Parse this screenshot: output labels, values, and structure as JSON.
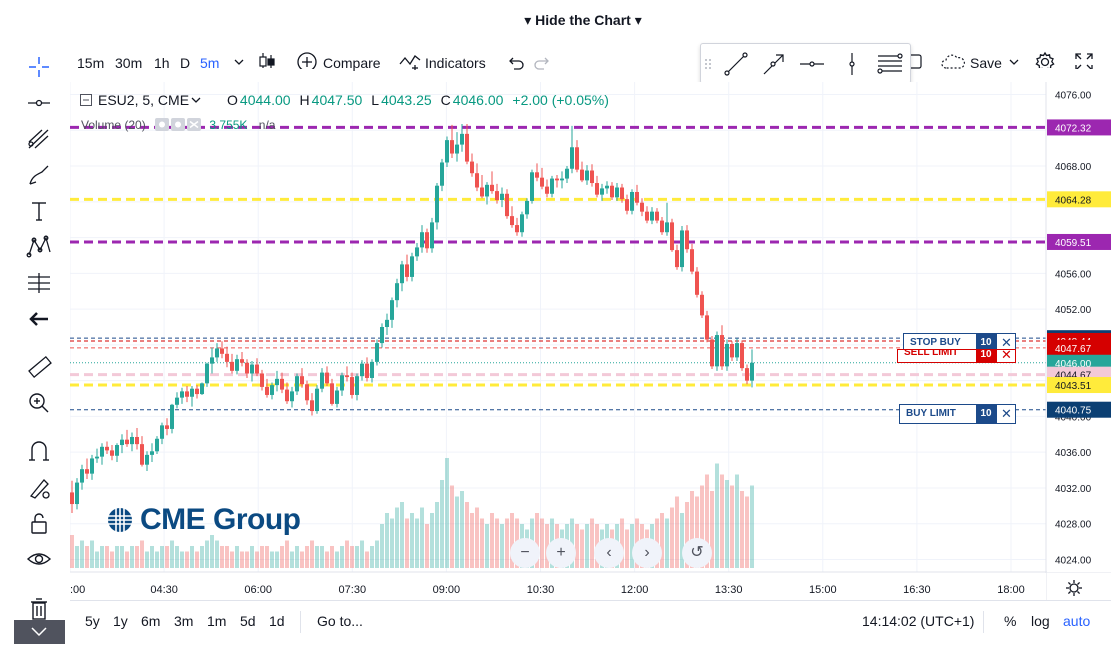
{
  "header": {
    "title": "Hide the Chart"
  },
  "toolbar": {
    "intervals": [
      "15m",
      "30m",
      "1h",
      "D",
      "5m"
    ],
    "active_interval": "5m",
    "compare_label": "Compare",
    "indicators_label": "Indicators",
    "save_label": "Save"
  },
  "legend": {
    "symbol": "ESU2, 5, CME",
    "open_label": "O",
    "open": "4044.00",
    "high_label": "H",
    "high": "4047.50",
    "low_label": "L",
    "low": "4043.25",
    "close_label": "C",
    "close": "4046.00",
    "change": "+2.00 (+0.05%)",
    "volume_label": "Volume (20)",
    "volume_value": "3.755K",
    "volume_ma": "n/a"
  },
  "orders": {
    "stop_buy_label": "STOP BUY",
    "stop_buy_qty": "10",
    "sell_limit_label": "SELL LIMIT",
    "sell_limit_qty": "10",
    "buy_limit_label": "BUY LIMIT",
    "buy_limit_qty": "10"
  },
  "logo": {
    "text": "CME Group"
  },
  "bottombar": {
    "ranges": [
      "5y",
      "1y",
      "6m",
      "3m",
      "1m",
      "5d",
      "1d"
    ],
    "goto_label": "Go to...",
    "time": "14:14:02 (UTC+1)",
    "percent": "%",
    "log": "log",
    "auto": "auto"
  },
  "colors": {
    "up": "#26a69a",
    "down": "#ef5350",
    "purple": "#9c27b0",
    "yellow": "#ffeb3b",
    "accent": "#2962ff",
    "order_blue": "#1c4a8a",
    "sell_red": "#d50000"
  },
  "chart_data": {
    "type": "candlestick",
    "x_ticks": [
      ":00",
      "04:30",
      "06:00",
      "07:30",
      "09:00",
      "10:30",
      "12:00",
      "13:30",
      "15:00",
      "16:30",
      "18:00"
    ],
    "y_ticks": [
      "4076.00",
      "4072.00",
      "4068.00",
      "4064.00",
      "4060.00",
      "4056.00",
      "4052.00",
      "4048.00",
      "4044.00",
      "4040.00",
      "4036.00",
      "4032.00",
      "4028.00",
      "4024.00"
    ],
    "ylim": [
      4022.6,
      4077.4
    ],
    "ohlc": [
      [
        4031.5,
        4032.8,
        4029.2,
        4030.2
      ],
      [
        4030.2,
        4033.1,
        4029.6,
        4032.6
      ],
      [
        4032.6,
        4034.6,
        4031.8,
        4034.1
      ],
      [
        4034.1,
        4035.3,
        4033.0,
        4033.6
      ],
      [
        4033.6,
        4035.7,
        4032.9,
        4035.3
      ],
      [
        4035.3,
        4036.4,
        4034.8,
        4035.5
      ],
      [
        4035.5,
        4037.0,
        4034.6,
        4036.6
      ],
      [
        4036.6,
        4037.2,
        4035.8,
        4036.2
      ],
      [
        4036.2,
        4036.8,
        4035.1,
        4035.6
      ],
      [
        4035.6,
        4037.0,
        4034.9,
        4036.8
      ],
      [
        4036.8,
        4038.0,
        4035.9,
        4037.4
      ],
      [
        4037.4,
        4038.5,
        4036.6,
        4036.9
      ],
      [
        4036.9,
        4038.2,
        4036.1,
        4037.7
      ],
      [
        4037.7,
        4038.7,
        4036.3,
        4036.9
      ],
      [
        4036.9,
        4037.8,
        4034.4,
        4034.6
      ],
      [
        4034.6,
        4036.1,
        4033.9,
        4035.7
      ],
      [
        4035.7,
        4037.0,
        4034.9,
        4036.1
      ],
      [
        4036.1,
        4037.8,
        4035.8,
        4037.5
      ],
      [
        4037.5,
        4039.3,
        4036.9,
        4039.0
      ],
      [
        4039.0,
        4039.8,
        4037.9,
        4038.6
      ],
      [
        4038.6,
        4041.4,
        4038.1,
        4041.3
      ],
      [
        4041.3,
        4042.7,
        4040.9,
        4042.1
      ],
      [
        4042.1,
        4043.2,
        4041.4,
        4042.8
      ],
      [
        4042.8,
        4043.4,
        4041.6,
        4042.2
      ],
      [
        4042.2,
        4043.4,
        4041.1,
        4043.1
      ],
      [
        4043.1,
        4043.5,
        4042.0,
        4042.5
      ],
      [
        4042.5,
        4043.8,
        4042.4,
        4043.7
      ],
      [
        4043.7,
        4046.0,
        4043.3,
        4045.9
      ],
      [
        4045.9,
        4047.7,
        4044.8,
        4046.6
      ],
      [
        4046.6,
        4048.2,
        4046.1,
        4047.6
      ],
      [
        4047.6,
        4048.4,
        4046.5,
        4047.0
      ],
      [
        4047.0,
        4047.8,
        4045.5,
        4046.1
      ],
      [
        4046.1,
        4047.0,
        4044.8,
        4045.1
      ],
      [
        4045.1,
        4046.9,
        4044.7,
        4046.4
      ],
      [
        4046.4,
        4047.2,
        4045.6,
        4046.0
      ],
      [
        4046.0,
        4046.4,
        4044.3,
        4044.8
      ],
      [
        4044.8,
        4046.2,
        4043.9,
        4045.8
      ],
      [
        4045.8,
        4046.5,
        4044.5,
        4044.8
      ],
      [
        4044.8,
        4045.2,
        4042.9,
        4043.3
      ],
      [
        4043.3,
        4044.2,
        4042.1,
        4042.4
      ],
      [
        4042.4,
        4043.8,
        4041.9,
        4043.5
      ],
      [
        4043.5,
        4045.1,
        4042.8,
        4044.2
      ],
      [
        4044.2,
        4044.9,
        4042.6,
        4043.0
      ],
      [
        4043.0,
        4043.8,
        4041.4,
        4041.7
      ],
      [
        4041.7,
        4043.3,
        4041.0,
        4042.8
      ],
      [
        4042.8,
        4044.8,
        4042.4,
        4044.5
      ],
      [
        4044.5,
        4045.4,
        4043.2,
        4043.6
      ],
      [
        4043.6,
        4044.0,
        4041.3,
        4041.8
      ],
      [
        4041.8,
        4042.6,
        4040.1,
        4040.6
      ],
      [
        4040.6,
        4043.5,
        4040.3,
        4043.1
      ],
      [
        4043.1,
        4045.4,
        4042.7,
        4044.9
      ],
      [
        4044.9,
        4045.6,
        4043.4,
        4043.7
      ],
      [
        4043.7,
        4044.2,
        4041.2,
        4041.4
      ],
      [
        4041.4,
        4043.3,
        4041.0,
        4042.9
      ],
      [
        4042.9,
        4044.9,
        4042.3,
        4044.6
      ],
      [
        4044.6,
        4045.6,
        4043.9,
        4044.4
      ],
      [
        4044.4,
        4044.9,
        4042.0,
        4042.4
      ],
      [
        4042.4,
        4044.8,
        4041.8,
        4044.5
      ],
      [
        4044.5,
        4046.3,
        4044.0,
        4045.9
      ],
      [
        4045.9,
        4046.6,
        4043.9,
        4044.3
      ],
      [
        4044.3,
        4046.4,
        4043.8,
        4046.1
      ],
      [
        4046.1,
        4048.6,
        4045.7,
        4048.2
      ],
      [
        4048.2,
        4050.4,
        4047.7,
        4050.0
      ],
      [
        4050.0,
        4051.5,
        4049.1,
        4050.8
      ],
      [
        4050.8,
        4053.3,
        4049.9,
        4053.0
      ],
      [
        4053.0,
        4055.4,
        4052.2,
        4054.9
      ],
      [
        4054.9,
        4057.4,
        4054.0,
        4057.0
      ],
      [
        4057.0,
        4058.1,
        4055.1,
        4055.6
      ],
      [
        4055.6,
        4058.3,
        4055.1,
        4057.9
      ],
      [
        4057.9,
        4059.4,
        4057.4,
        4058.9
      ],
      [
        4058.9,
        4061.4,
        4058.3,
        4060.6
      ],
      [
        4060.6,
        4061.0,
        4058.3,
        4058.8
      ],
      [
        4058.8,
        4062.2,
        4058.3,
        4061.7
      ],
      [
        4061.7,
        4066.1,
        4060.9,
        4065.8
      ],
      [
        4065.8,
        4068.8,
        4065.2,
        4068.4
      ],
      [
        4068.4,
        4071.3,
        4067.9,
        4070.9
      ],
      [
        4070.9,
        4072.6,
        4068.9,
        4069.4
      ],
      [
        4069.4,
        4071.8,
        4068.5,
        4070.4
      ],
      [
        4070.4,
        4072.7,
        4069.6,
        4071.6
      ],
      [
        4071.6,
        4072.7,
        4068.2,
        4068.5
      ],
      [
        4068.5,
        4069.4,
        4066.8,
        4067.2
      ],
      [
        4067.2,
        4068.3,
        4065.2,
        4065.6
      ],
      [
        4065.6,
        4067.0,
        4064.4,
        4064.6
      ],
      [
        4064.6,
        4066.2,
        4063.7,
        4065.9
      ],
      [
        4065.9,
        4067.4,
        4064.9,
        4065.2
      ],
      [
        4065.2,
        4066.0,
        4063.8,
        4064.2
      ],
      [
        4064.2,
        4065.6,
        4063.4,
        4064.9
      ],
      [
        4064.9,
        4065.4,
        4062.1,
        4062.4
      ],
      [
        4062.4,
        4063.5,
        4061.1,
        4061.4
      ],
      [
        4061.4,
        4062.2,
        4060.2,
        4060.6
      ],
      [
        4060.6,
        4062.9,
        4060.1,
        4062.6
      ],
      [
        4062.6,
        4064.4,
        4062.1,
        4064.1
      ],
      [
        4064.1,
        4067.6,
        4063.8,
        4067.3
      ],
      [
        4067.3,
        4068.3,
        4066.3,
        4066.7
      ],
      [
        4066.7,
        4067.8,
        4065.4,
        4065.7
      ],
      [
        4065.7,
        4066.5,
        4064.5,
        4064.9
      ],
      [
        4064.9,
        4066.9,
        4064.5,
        4066.6
      ],
      [
        4066.6,
        4067.0,
        4065.6,
        4066.4
      ],
      [
        4066.4,
        4067.4,
        4065.5,
        4066.6
      ],
      [
        4066.6,
        4068.0,
        4066.1,
        4067.7
      ],
      [
        4067.7,
        4072.5,
        4067.2,
        4070.1
      ],
      [
        4070.1,
        4070.9,
        4067.3,
        4067.6
      ],
      [
        4067.6,
        4068.5,
        4066.2,
        4066.4
      ],
      [
        4066.4,
        4068.1,
        4065.9,
        4067.5
      ],
      [
        4067.5,
        4068.2,
        4065.7,
        4066.1
      ],
      [
        4066.1,
        4066.9,
        4064.5,
        4064.8
      ],
      [
        4064.8,
        4066.0,
        4064.1,
        4065.5
      ],
      [
        4065.5,
        4066.3,
        4064.9,
        4065.8
      ],
      [
        4065.8,
        4066.2,
        4064.2,
        4064.5
      ],
      [
        4064.5,
        4066.1,
        4064.1,
        4065.6
      ],
      [
        4065.6,
        4066.0,
        4063.9,
        4064.3
      ],
      [
        4064.3,
        4064.8,
        4062.6,
        4063.0
      ],
      [
        4063.0,
        4065.4,
        4062.6,
        4065.1
      ],
      [
        4065.1,
        4065.9,
        4063.6,
        4063.9
      ],
      [
        4063.9,
        4064.4,
        4062.4,
        4062.9
      ],
      [
        4062.9,
        4063.5,
        4061.6,
        4061.9
      ],
      [
        4061.9,
        4063.4,
        4061.5,
        4062.9
      ],
      [
        4062.9,
        4063.3,
        4061.6,
        4061.9
      ],
      [
        4061.9,
        4062.3,
        4060.3,
        4060.6
      ],
      [
        4060.6,
        4063.9,
        4060.2,
        4061.7
      ],
      [
        4061.7,
        4062.1,
        4058.4,
        4058.6
      ],
      [
        4058.6,
        4059.2,
        4056.4,
        4056.7
      ],
      [
        4056.7,
        4061.3,
        4056.2,
        4060.8
      ],
      [
        4060.8,
        4061.4,
        4058.3,
        4058.7
      ],
      [
        4058.7,
        4059.3,
        4055.9,
        4056.2
      ],
      [
        4056.2,
        4056.7,
        4053.3,
        4053.6
      ],
      [
        4053.6,
        4054.0,
        4051.0,
        4051.3
      ],
      [
        4051.3,
        4051.8,
        4048.3,
        4048.6
      ],
      [
        4048.6,
        4049.0,
        4045.3,
        4045.6
      ],
      [
        4045.6,
        4049.5,
        4045.1,
        4049.1
      ],
      [
        4049.1,
        4050.2,
        4045.2,
        4045.6
      ],
      [
        4045.6,
        4048.6,
        4045.1,
        4048.1
      ],
      [
        4048.1,
        4048.4,
        4046.2,
        4046.6
      ],
      [
        4046.6,
        4048.7,
        4046.2,
        4048.2
      ],
      [
        4048.2,
        4048.5,
        4045.1,
        4045.4
      ],
      [
        4045.4,
        4045.8,
        4043.6,
        4044.0
      ],
      [
        4044.0,
        4047.5,
        4043.25,
        4046.0
      ]
    ],
    "volume": [
      6,
      4,
      5,
      4,
      5,
      3,
      4,
      4,
      3,
      4,
      4,
      3,
      4,
      4,
      5,
      3,
      4,
      3,
      4,
      4,
      5,
      4,
      3,
      3,
      4,
      3,
      4,
      5,
      6,
      5,
      4,
      4,
      3,
      4,
      3,
      3,
      4,
      3,
      4,
      4,
      3,
      3,
      4,
      5,
      3,
      4,
      3,
      4,
      5,
      4,
      4,
      3,
      4,
      3,
      4,
      5,
      4,
      4,
      5,
      3,
      4,
      5,
      8,
      10,
      9,
      11,
      12,
      9,
      10,
      9,
      11,
      8,
      10,
      12,
      16,
      20,
      15,
      13,
      14,
      12,
      10,
      11,
      9,
      8,
      10,
      9,
      8,
      9,
      10,
      9,
      8,
      7,
      9,
      10,
      9,
      8,
      9,
      8,
      7,
      8,
      9,
      8,
      7,
      8,
      9,
      8,
      7,
      8,
      7,
      8,
      9,
      7,
      8,
      9,
      8,
      7,
      8,
      9,
      10,
      9,
      11,
      13,
      10,
      12,
      14,
      13,
      15,
      17,
      14,
      19,
      17,
      16,
      15,
      17,
      14,
      13,
      15
    ],
    "vol_max": 20,
    "hlines": [
      {
        "price": 4072.32,
        "color": "purple",
        "style": "dashed-bold",
        "label": "4072.32"
      },
      {
        "price": 4064.28,
        "color": "yellow",
        "style": "dashed-bold",
        "label": "4064.28"
      },
      {
        "price": 4059.51,
        "color": "purple",
        "style": "dashed-bold",
        "label": "4059.51"
      },
      {
        "price": 4048.75,
        "color": "order_blue",
        "style": "dashed",
        "label": "4048.75"
      },
      {
        "price": 4048.44,
        "color": "sell_red",
        "style": "dashed",
        "label": "4048.44"
      },
      {
        "price": 4047.67,
        "color": "down",
        "style": "dashed",
        "label": "4047.67"
      },
      {
        "price": 4046.0,
        "color": "up",
        "style": "dotted",
        "label": "4046.00"
      },
      {
        "price": 4044.67,
        "color": "pink",
        "style": "dashed-bold",
        "label": "4044.67"
      },
      {
        "price": 4043.51,
        "color": "yellow",
        "style": "dashed-bold",
        "label": "4043.51"
      },
      {
        "price": 4040.75,
        "color": "order_blue",
        "style": "dashed",
        "label": "4040.75"
      }
    ]
  }
}
